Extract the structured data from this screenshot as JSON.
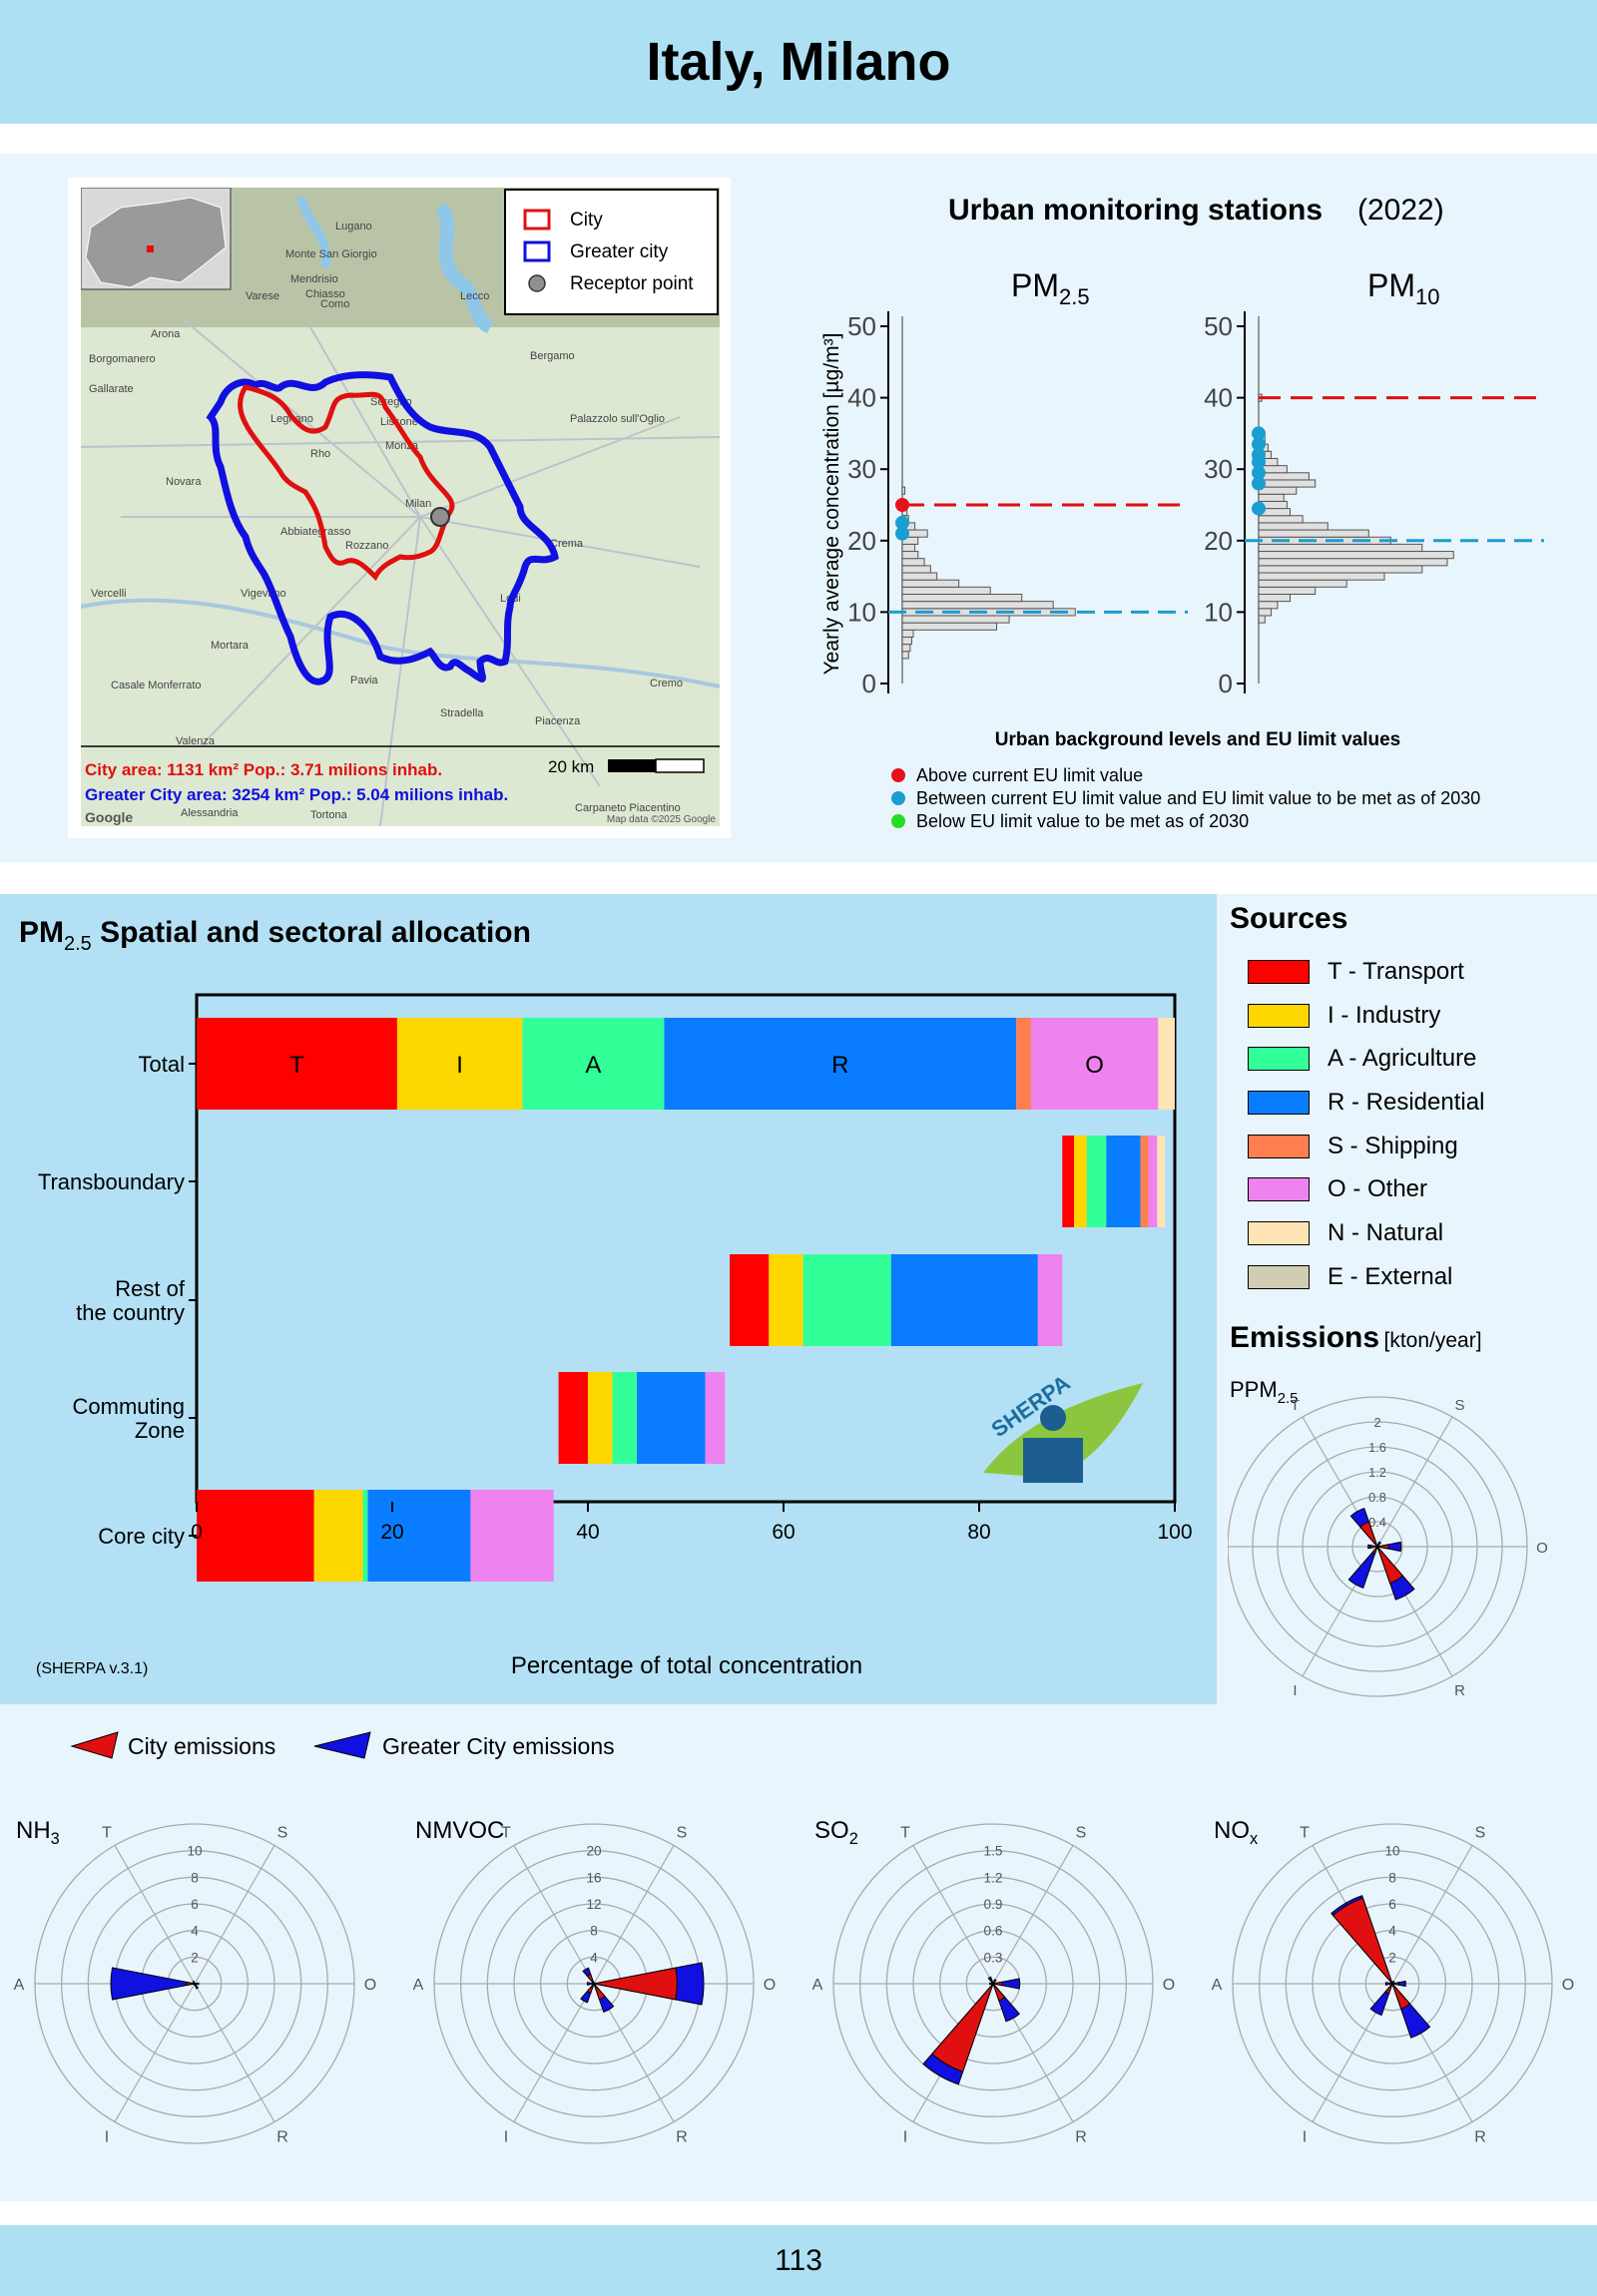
{
  "header": {
    "title": "Italy, Milano"
  },
  "map": {
    "legend": {
      "city": "City",
      "greater_city": "Greater city",
      "receptor": "Receptor point"
    },
    "city_area_line": "City area: 1131 km² Pop.: 3.71 milions inhab.",
    "greater_area_line": "Greater City area: 3254 km² Pop.: 5.04 milions inhab.",
    "scale": "20 km",
    "attribution": "Map data ©2025 Google",
    "google": "Google",
    "places": [
      "Lugano",
      "Monte San Giorgio",
      "Mendrisio",
      "Chiasso",
      "Varese",
      "Como",
      "Lecco",
      "Arona",
      "Borgomanero",
      "Bergamo",
      "Gallarate",
      "Seregno",
      "Lissone",
      "Monza",
      "Palazzolo sull'Oglio",
      "Legnano",
      "Rho",
      "Novara",
      "Milan",
      "Abbiategrasso",
      "Rozzano",
      "Crema",
      "Vercelli",
      "Vigevano",
      "Lodi",
      "Mortara",
      "Pavia",
      "Casale Monferrato",
      "Cremo",
      "Stradella",
      "Piacenza",
      "Valenza",
      "Alessandria",
      "Tortona",
      "Carpaneto Piacentino"
    ],
    "colors": {
      "city": "#e01010",
      "greater": "#1010e0"
    }
  },
  "stations": {
    "title_bold": "Urban monitoring stations",
    "title_year": "(2022)",
    "pm25_label": "PM",
    "pm25_sub": "2.5",
    "pm10_label": "PM",
    "pm10_sub": "10",
    "ylabel": "Yearly average concentration [µg/m³]",
    "subtitle": "Urban background levels and EU limit values",
    "legend": [
      {
        "text": "Above current EU limit value",
        "color": "#e8101b"
      },
      {
        "text": "Between current EU limit value and EU limit value to be met as of 2030",
        "color": "#1a9dd0"
      },
      {
        "text": "Below EU limit value to be met as of 2030",
        "color": "#22dd22"
      }
    ]
  },
  "allocation": {
    "title": "PM",
    "title_sub": "2.5",
    "title_rest": " Spatial and sectoral allocation",
    "xlabel": "Percentage of total concentration",
    "version": "(SHERPA v.3.1)",
    "logo": "SHERPA"
  },
  "sources": {
    "title": "Sources",
    "items": [
      {
        "label": "T - Transport",
        "color": "#ff0000"
      },
      {
        "label": "I - Industry",
        "color": "#ffd700"
      },
      {
        "label": "A - Agriculture",
        "color": "#33ff99"
      },
      {
        "label": "R - Residential",
        "color": "#0a7cff"
      },
      {
        "label": "S - Shipping",
        "color": "#ff7f50"
      },
      {
        "label": "O - Other",
        "color": "#ee82ee"
      },
      {
        "label": "N - Natural",
        "color": "#ffe4b5"
      },
      {
        "label": "E - External",
        "color": "#d0cdb4"
      }
    ]
  },
  "emissions": {
    "title": "Emissions",
    "unit": "[kton/year]",
    "city_label": "City emissions",
    "greater_label": "Greater City emissions"
  },
  "chart_data": [
    {
      "type": "histogram",
      "title": "PM2.5",
      "ylabel": "Yearly average concentration [µg/m³]",
      "ylim": [
        0,
        50
      ],
      "yticks": [
        0,
        10,
        20,
        30,
        40,
        50
      ],
      "limit_current": 25,
      "limit_2030": 10,
      "bins": [
        {
          "y": 4,
          "count": 2
        },
        {
          "y": 5,
          "count": 2.5
        },
        {
          "y": 6,
          "count": 3
        },
        {
          "y": 7,
          "count": 3.5
        },
        {
          "y": 8,
          "count": 30
        },
        {
          "y": 9,
          "count": 34
        },
        {
          "y": 10,
          "count": 55
        },
        {
          "y": 11,
          "count": 48
        },
        {
          "y": 12,
          "count": 38
        },
        {
          "y": 13,
          "count": 28
        },
        {
          "y": 14,
          "count": 18
        },
        {
          "y": 15,
          "count": 11
        },
        {
          "y": 16,
          "count": 9
        },
        {
          "y": 17,
          "count": 7
        },
        {
          "y": 18,
          "count": 5
        },
        {
          "y": 19,
          "count": 4
        },
        {
          "y": 20,
          "count": 5
        },
        {
          "y": 21,
          "count": 8
        },
        {
          "y": 22,
          "count": 4
        },
        {
          "y": 23,
          "count": 2
        },
        {
          "y": 24,
          "count": 1.5
        },
        {
          "y": 27,
          "count": 0.8
        }
      ],
      "stations": [
        {
          "value": 25,
          "cls": "above"
        },
        {
          "value": 22.5,
          "cls": "between"
        },
        {
          "value": 21,
          "cls": "between"
        }
      ]
    },
    {
      "type": "histogram",
      "title": "PM10",
      "ylabel": "Yearly average concentration [µg/m³]",
      "ylim": [
        0,
        50
      ],
      "yticks": [
        0,
        10,
        20,
        30,
        40,
        50
      ],
      "limit_current": 40,
      "limit_2030": 20,
      "bins": [
        {
          "y": 9,
          "count": 2
        },
        {
          "y": 10,
          "count": 4
        },
        {
          "y": 11,
          "count": 6
        },
        {
          "y": 12,
          "count": 10
        },
        {
          "y": 13,
          "count": 18
        },
        {
          "y": 14,
          "count": 28
        },
        {
          "y": 15,
          "count": 40
        },
        {
          "y": 16,
          "count": 52
        },
        {
          "y": 17,
          "count": 60
        },
        {
          "y": 18,
          "count": 62
        },
        {
          "y": 19,
          "count": 52
        },
        {
          "y": 20,
          "count": 42
        },
        {
          "y": 21,
          "count": 35
        },
        {
          "y": 22,
          "count": 22
        },
        {
          "y": 23,
          "count": 14
        },
        {
          "y": 24,
          "count": 10
        },
        {
          "y": 25,
          "count": 9
        },
        {
          "y": 26,
          "count": 8
        },
        {
          "y": 27,
          "count": 12
        },
        {
          "y": 28,
          "count": 18
        },
        {
          "y": 29,
          "count": 16
        },
        {
          "y": 30,
          "count": 9
        },
        {
          "y": 31,
          "count": 6
        },
        {
          "y": 32,
          "count": 4
        },
        {
          "y": 33,
          "count": 3
        },
        {
          "y": 34,
          "count": 2
        },
        {
          "y": 35,
          "count": 1.5
        },
        {
          "y": 40,
          "count": 1
        }
      ],
      "stations": [
        {
          "value": 35,
          "cls": "between"
        },
        {
          "value": 33.5,
          "cls": "between"
        },
        {
          "value": 32,
          "cls": "between"
        },
        {
          "value": 31,
          "cls": "between"
        },
        {
          "value": 29.5,
          "cls": "between"
        },
        {
          "value": 28,
          "cls": "between"
        },
        {
          "value": 24.5,
          "cls": "between"
        }
      ]
    },
    {
      "type": "bar",
      "stacked": true,
      "orientation": "horizontal",
      "title": "PM2.5 Spatial and sectoral allocation",
      "xlabel": "Percentage of total concentration",
      "xlim": [
        0,
        100
      ],
      "xticks": [
        0,
        20,
        40,
        60,
        80,
        100
      ],
      "sectors": [
        "T",
        "I",
        "A",
        "R",
        "S",
        "O",
        "N",
        "E"
      ],
      "rows": [
        {
          "label": "Total",
          "label2": "",
          "start": 0,
          "values": [
            20.5,
            12.8,
            14.5,
            36,
            1.5,
            13,
            1.7,
            0
          ],
          "annotate": true
        },
        {
          "label": "Transboundary",
          "label2": "",
          "start": 88.5,
          "values": [
            1.2,
            1.3,
            2,
            3.5,
            0.8,
            0.9,
            0.8,
            0
          ]
        },
        {
          "label": "Rest of",
          "label2": "the country",
          "start": 54.5,
          "values": [
            4,
            3.5,
            9,
            15,
            0,
            2.5,
            0,
            0
          ]
        },
        {
          "label": "Commuting",
          "label2": "Zone",
          "start": 37,
          "values": [
            3,
            2.5,
            2.5,
            7,
            0,
            2,
            0,
            0
          ]
        },
        {
          "label": "Core city",
          "label2": "",
          "start": 0,
          "values": [
            12,
            5,
            0.5,
            10.5,
            0,
            8.5,
            0,
            0
          ]
        }
      ]
    },
    {
      "type": "polar",
      "title": "PPM",
      "title_sub": "2.5",
      "rmax": 2,
      "rticks": [
        "0.4",
        "0.8",
        "1.2",
        "1.6",
        "2"
      ],
      "city": {
        "T": 0.42,
        "I": 0.12,
        "A": 0.1,
        "R": 0.62,
        "O": 0.18,
        "S": 0.05
      },
      "greater": {
        "T": 0.65,
        "I": 0.7,
        "A": 0.15,
        "R": 0.9,
        "O": 0.38,
        "S": 0.08
      }
    },
    {
      "type": "polar",
      "title": "NH",
      "title_sub": "3",
      "rmax": 10,
      "rticks": [
        "2",
        "4",
        "6",
        "8",
        "10"
      ],
      "city": {
        "T": 0.1,
        "I": 0.05,
        "A": 0.6,
        "R": 0.2,
        "O": 0.1,
        "S": 0
      },
      "greater": {
        "T": 0.2,
        "I": 0.1,
        "A": 6.3,
        "R": 0.4,
        "O": 0.3,
        "S": 0
      }
    },
    {
      "type": "polar",
      "title": "NMVOC",
      "title_sub": "",
      "rmax": 20,
      "rticks": [
        "4",
        "8",
        "12",
        "16",
        "20"
      ],
      "city": {
        "T": 1.5,
        "I": 1.5,
        "A": 0.3,
        "R": 2.5,
        "O": 12.5,
        "S": 0.1
      },
      "greater": {
        "T": 2.5,
        "I": 3,
        "A": 1,
        "R": 4.5,
        "O": 16.5,
        "S": 0.2
      }
    },
    {
      "type": "polar",
      "title": "SO",
      "title_sub": "2",
      "rmax": 1.5,
      "rticks": [
        "0.3",
        "0.6",
        "0.9",
        "1.2",
        "1.5"
      ],
      "city": {
        "T": 0.05,
        "I": 1.05,
        "A": 0.02,
        "R": 0.2,
        "O": 0.1,
        "S": 0.02
      },
      "greater": {
        "T": 0.08,
        "I": 1.2,
        "A": 0.04,
        "R": 0.45,
        "O": 0.3,
        "S": 0.05
      }
    },
    {
      "type": "polar",
      "title": "NO",
      "title_sub": "x",
      "rmax": 10,
      "rticks": [
        "2",
        "4",
        "6",
        "8",
        "10"
      ],
      "city": {
        "T": 6.8,
        "I": 0.8,
        "A": 0.2,
        "R": 2,
        "O": 0.5,
        "S": 0.1
      },
      "greater": {
        "T": 7,
        "I": 2.5,
        "A": 0.5,
        "R": 4.3,
        "O": 1,
        "S": 0.2
      }
    }
  ]
}
